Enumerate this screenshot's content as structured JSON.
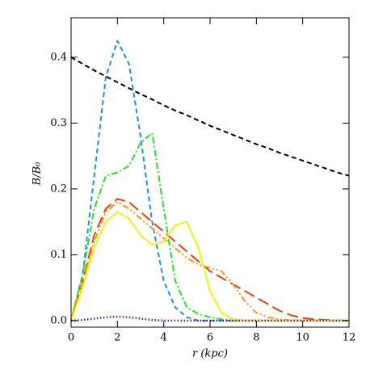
{
  "chart_data": {
    "type": "line",
    "xlabel": "r (kpc)",
    "ylabel": "B/B₀",
    "x": [
      0,
      0.5,
      1,
      1.5,
      2,
      2.5,
      3,
      3.5,
      4,
      4.5,
      5,
      5.5,
      6,
      6.5,
      7,
      7.5,
      8,
      8.5,
      9,
      9.5,
      10,
      10.5,
      11,
      11.5,
      12
    ],
    "series": [
      {
        "color": "#000000",
        "linestyle": "dashed",
        "values": [
          0.4,
          0.39,
          0.38,
          0.371,
          0.362,
          0.353,
          0.344,
          0.336,
          0.327,
          0.319,
          0.312,
          0.304,
          0.296,
          0.289,
          0.282,
          0.275,
          0.268,
          0.262,
          0.255,
          0.249,
          0.243,
          0.237,
          0.231,
          0.225,
          0.22
        ]
      },
      {
        "color": "#1e8cf0",
        "linestyle": "dashed",
        "values": [
          0,
          0.07,
          0.22,
          0.37,
          0.425,
          0.39,
          0.28,
          0.15,
          0.06,
          0.02,
          0.005,
          0,
          0,
          0,
          0,
          0,
          0,
          0,
          0,
          0,
          0,
          0,
          0,
          0,
          0
        ]
      },
      {
        "color": "#22e622",
        "linestyle": "dashdot",
        "values": [
          0,
          0.07,
          0.17,
          0.22,
          0.225,
          0.235,
          0.27,
          0.285,
          0.17,
          0.06,
          0.02,
          0.01,
          0.005,
          0.002,
          0,
          0,
          0,
          0,
          0,
          0,
          0,
          0,
          0,
          0,
          0
        ]
      },
      {
        "color": "#f03c0a",
        "linestyle": "longdash",
        "values": [
          0,
          0.06,
          0.13,
          0.17,
          0.185,
          0.18,
          0.165,
          0.15,
          0.135,
          0.12,
          0.105,
          0.09,
          0.075,
          0.065,
          0.055,
          0.045,
          0.035,
          0.025,
          0.015,
          0.008,
          0.004,
          0.002,
          0.001,
          0,
          0
        ]
      },
      {
        "color": "#f59614",
        "linestyle": "dashdotdot",
        "values": [
          0,
          0.06,
          0.12,
          0.165,
          0.18,
          0.17,
          0.155,
          0.14,
          0.125,
          0.11,
          0.095,
          0.085,
          0.08,
          0.075,
          0.055,
          0.03,
          0.012,
          0.005,
          0.002,
          0,
          0,
          0,
          0,
          0,
          0
        ]
      },
      {
        "color": "#f5f014",
        "linestyle": "solid",
        "values": [
          0,
          0.05,
          0.11,
          0.15,
          0.165,
          0.155,
          0.13,
          0.115,
          0.12,
          0.145,
          0.15,
          0.11,
          0.045,
          0.012,
          0.002,
          0,
          0,
          0,
          0,
          0,
          0,
          0,
          0,
          0,
          0
        ]
      },
      {
        "color": "#5a1e78",
        "linestyle": "dotted",
        "values": [
          0,
          0.001,
          0.003,
          0.005,
          0.006,
          0.005,
          0.003,
          0.001,
          0,
          0,
          0,
          0,
          0,
          0,
          0,
          0,
          0,
          0,
          0,
          0,
          0,
          0,
          0,
          0,
          0
        ]
      }
    ],
    "xlim": [
      0,
      12
    ],
    "xticks": [
      0,
      2,
      4,
      6,
      8,
      10,
      12
    ],
    "ylim": [
      -0.01,
      0.46
    ],
    "yticks": [
      {
        "value": 0,
        "label": "0.0"
      },
      0.1,
      0.2,
      0.3,
      0.4
    ]
  }
}
